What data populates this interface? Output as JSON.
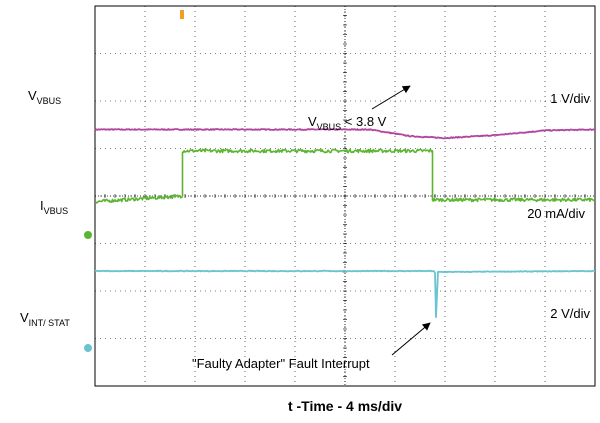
{
  "chart_data": {
    "type": "line",
    "title": "",
    "xlabel": "t -Time - 4 ms/div",
    "ylabel": "",
    "x_divisions": 10,
    "y_divisions": 8,
    "grid": true,
    "series": [
      {
        "name": "VVBUS",
        "label_main": "V",
        "label_sub": "VBUS",
        "color": "#b0479f",
        "scale": "1 V/div",
        "x_div": [
          0,
          3,
          5.5,
          6.3,
          7.0,
          8.0,
          9.0,
          10
        ],
        "y_div": [
          5.4,
          5.4,
          5.4,
          5.26,
          5.22,
          5.28,
          5.38,
          5.4
        ]
      },
      {
        "name": "IVBUS",
        "label_main": "I",
        "label_sub": "VBUS",
        "color": "#5cb531",
        "scale": "20 mA/div",
        "x_div": [
          0,
          1.75,
          1.75,
          3.62,
          3.62,
          6.75,
          6.75,
          10
        ],
        "y_div": [
          3.88,
          4.0,
          4.95,
          4.95,
          4.95,
          4.95,
          3.92,
          3.92
        ]
      },
      {
        "name": "VINT/STAT",
        "label_main": "V",
        "label_sub": "INT/ STAT",
        "color": "#69c4d0",
        "scale": "2 V/div",
        "x_div": [
          0,
          6.78,
          6.8,
          6.82,
          6.86,
          10
        ],
        "y_div": [
          2.42,
          2.42,
          2.38,
          1.45,
          2.4,
          2.42
        ]
      }
    ],
    "annotations": [
      {
        "text_main": "V",
        "text_sub": "VBUS",
        "text_tail": " < 3.8 V"
      },
      {
        "text": "\"Faulty Adapter\" Fault Interrupt"
      }
    ]
  }
}
